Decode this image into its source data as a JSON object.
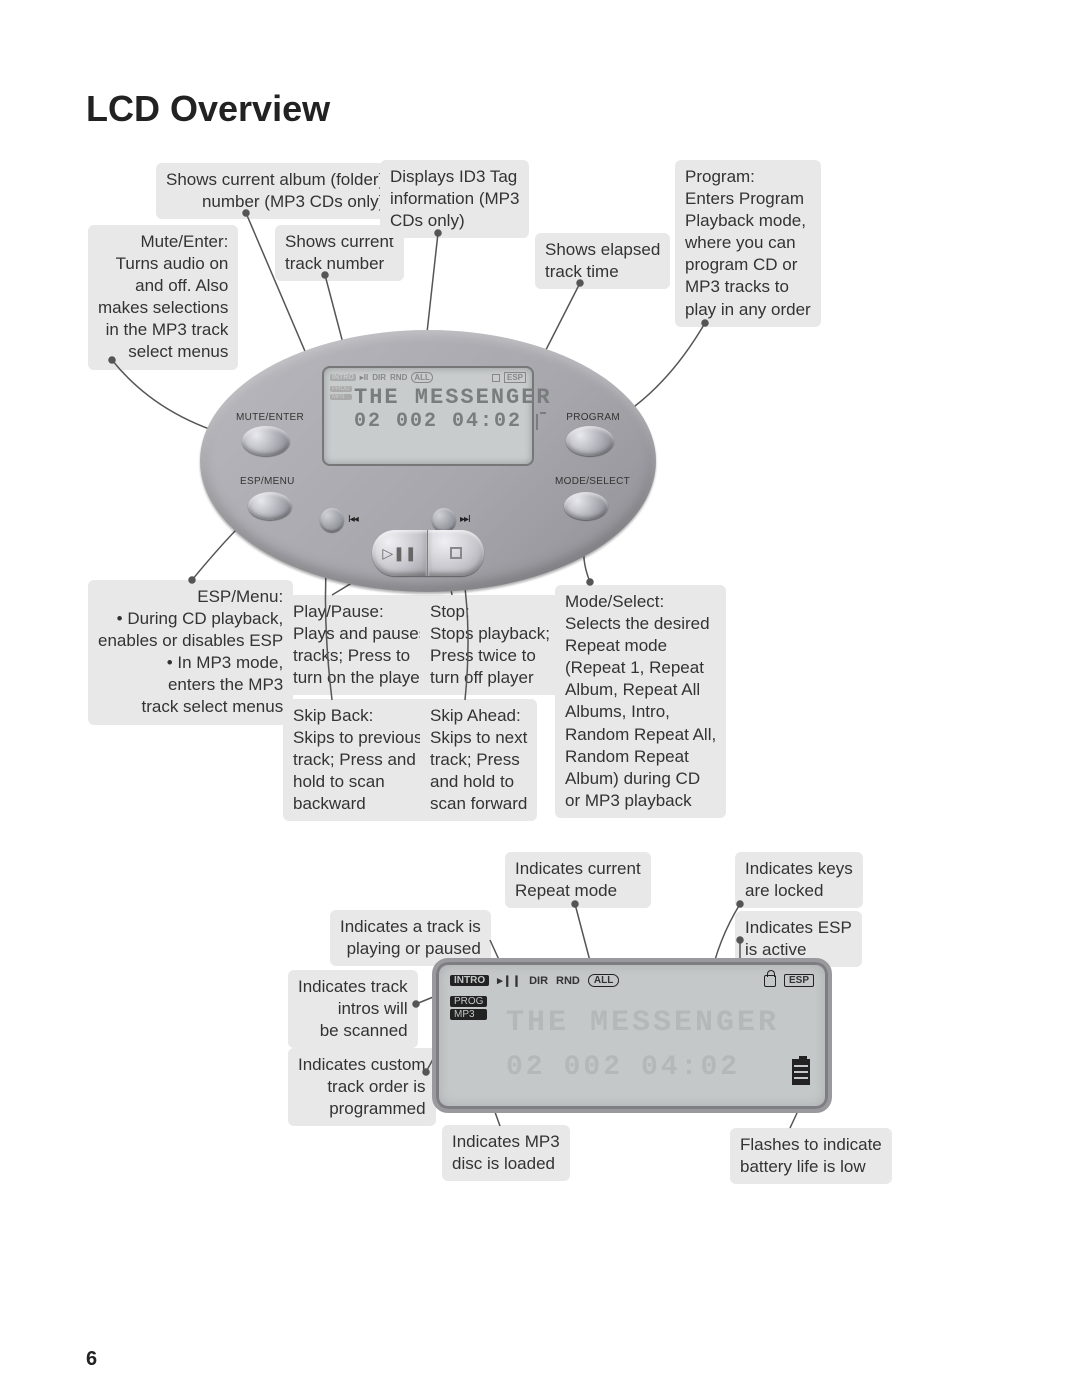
{
  "page": {
    "title": "LCD Overview",
    "number": "6"
  },
  "callouts_top": {
    "album_folder": "Shows current album (folder)\nnumber (MP3 CDs only)",
    "mute_enter": "Mute/Enter:\nTurns audio on\nand off. Also\nmakes selections\nin the MP3 track\nselect menus",
    "track_number": "Shows current\ntrack number",
    "id3_tag": "Displays ID3 Tag\ninformation (MP3\nCDs only)",
    "elapsed_time": "Shows elapsed\ntrack time",
    "program": "Program:\nEnters Program\nPlayback mode,\nwhere you can\nprogram CD or\nMP3 tracks to\nplay in any order",
    "esp_menu": "ESP/Menu:\n• During CD playback,\nenables or disables ESP\n• In MP3 mode,\nenters the MP3\ntrack select menus",
    "play_pause": "Play/Pause:\nPlays and pauses\ntracks; Press to\nturn on the player",
    "stop": "Stop:\nStops playback;\nPress twice to\nturn off player",
    "mode_select": "Mode/Select:\nSelects the desired\nRepeat mode\n(Repeat 1, Repeat\nAlbum, Repeat All\nAlbums, Intro,\nRandom Repeat All,\nRandom Repeat\nAlbum) during CD\nor MP3 playback",
    "skip_back": "Skip Back:\nSkips to previous\ntrack; Press and\nhold to scan\nbackward",
    "skip_ahead": "Skip Ahead:\nSkips to next\ntrack; Press\nand hold to\nscan forward"
  },
  "device": {
    "labels": {
      "mute_enter": "MUTE/ENTER",
      "esp_menu": "ESP/MENU",
      "program": "PROGRAM",
      "mode_select": "MODE/SELECT"
    },
    "lcd": {
      "icons": {
        "intro": "INTRO",
        "dir": "DIR",
        "rnd": "RND",
        "all": "ALL",
        "esp": "ESP",
        "prog": "PROG",
        "mp3": "MP3"
      },
      "main_text": "THE MESSENGER",
      "album": "02",
      "track": "002",
      "time": "04:02"
    }
  },
  "callouts_bottom": {
    "repeat_mode": "Indicates current\nRepeat mode",
    "keys_locked": "Indicates keys\nare locked",
    "playing_paused": "Indicates a track is\nplaying or paused",
    "esp_active": "Indicates ESP\nis active",
    "intro_scan": "Indicates track\nintros will\nbe scanned",
    "prog_order": "Indicates custom\ntrack order is\nprogrammed",
    "mp3_loaded": "Indicates MP3\ndisc is loaded",
    "battery_low": "Flashes to indicate\nbattery life is low"
  },
  "lcd_closeup": {
    "icons": {
      "intro": "INTRO",
      "dir": "DIR",
      "rnd": "RND",
      "all": "ALL",
      "esp": "ESP",
      "prog": "PROG",
      "mp3": "MP3"
    },
    "main_text": "THE MESSENGER",
    "album": "02",
    "track": "002",
    "time": "04:02"
  },
  "style": {
    "bg": "#ffffff",
    "callout_bg": "#e8e8e8",
    "device_grad_from": "#b8b8be",
    "device_grad_to": "#8f8f95",
    "lcd_bg": "#c8cccc",
    "lcd_text": "#7a7d7d",
    "lcd_ghost": "#b9bcbc",
    "font_title_size": 36,
    "font_callout_size": 17
  }
}
